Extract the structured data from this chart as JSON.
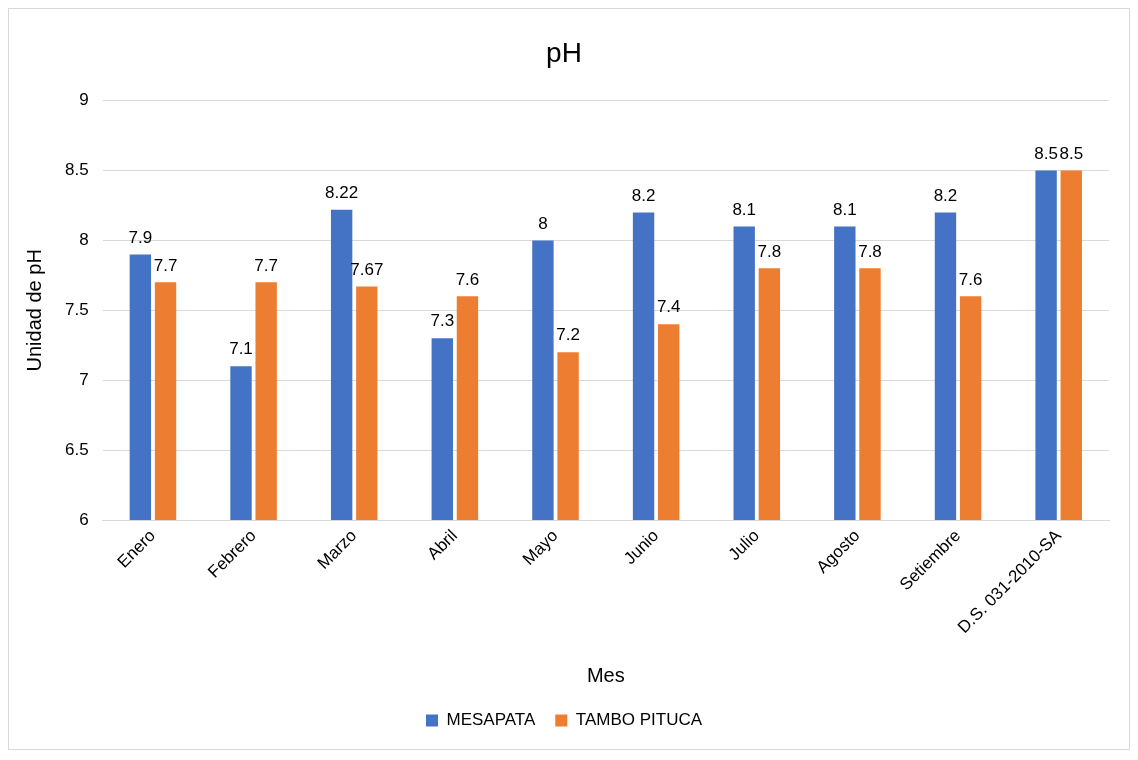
{
  "chart_data": {
    "type": "bar",
    "title": "pH",
    "xlabel": "Mes",
    "ylabel": "Unidad de pH",
    "categories": [
      "Enero",
      "Febrero",
      "Marzo",
      "Abril",
      "Mayo",
      "Junio",
      "Julio",
      "Agosto",
      "Setiembre",
      "D.S. 031-2010-SA"
    ],
    "series": [
      {
        "name": "MESAPATA",
        "color": "#4472c4",
        "values": [
          7.9,
          7.1,
          8.22,
          7.3,
          8,
          8.2,
          8.1,
          8.1,
          8.2,
          8.5
        ]
      },
      {
        "name": "TAMBO PITUCA",
        "color": "#ed7d31",
        "values": [
          7.7,
          7.7,
          7.67,
          7.6,
          7.2,
          7.4,
          7.8,
          7.8,
          7.6,
          8.5
        ]
      }
    ],
    "ylim": [
      6,
      9
    ],
    "yticks": [
      6,
      6.5,
      7,
      7.5,
      8,
      8.5,
      9
    ],
    "grid": "y",
    "legend": "bottom",
    "data_labels": true
  }
}
